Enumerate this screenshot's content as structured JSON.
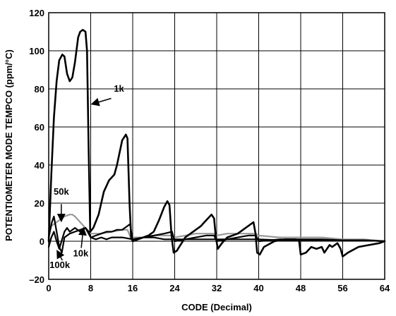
{
  "chart_data": {
    "type": "line",
    "xlabel": "CODE (Decimal)",
    "ylabel": "POTENTIOMETER MODE TEMPCO (ppm/°C)",
    "xlim": [
      0,
      64
    ],
    "ylim": [
      -20,
      120
    ],
    "x_ticks": [
      0,
      8,
      16,
      24,
      32,
      40,
      48,
      56,
      64
    ],
    "y_ticks": [
      -20,
      0,
      20,
      40,
      60,
      80,
      100,
      120
    ],
    "x_tick_labels": [
      "0",
      "8",
      "16",
      "24",
      "32",
      "40",
      "48",
      "56",
      "64"
    ],
    "y_tick_labels": [
      "–20",
      "0",
      "20",
      "40",
      "60",
      "80",
      "100",
      "120"
    ],
    "grid": true,
    "series": [
      {
        "name": "1k",
        "color": "#000000",
        "points": [
          [
            0,
            0
          ],
          [
            0.5,
            35
          ],
          [
            1,
            65
          ],
          [
            1.5,
            84
          ],
          [
            2,
            95
          ],
          [
            2.6,
            98
          ],
          [
            3,
            97
          ],
          [
            3.5,
            88
          ],
          [
            4,
            84
          ],
          [
            4.5,
            86
          ],
          [
            5,
            94
          ],
          [
            5.6,
            107
          ],
          [
            6,
            110
          ],
          [
            6.5,
            111
          ],
          [
            7,
            110
          ],
          [
            7.3,
            100
          ],
          [
            7.6,
            50
          ],
          [
            7.9,
            5
          ],
          [
            8.5,
            7
          ],
          [
            9.5,
            14
          ],
          [
            10.5,
            26
          ],
          [
            11.5,
            32
          ],
          [
            12.5,
            35
          ],
          [
            13,
            40
          ],
          [
            14,
            53
          ],
          [
            14.7,
            56
          ],
          [
            15,
            54
          ],
          [
            15.4,
            20
          ],
          [
            15.7,
            2
          ],
          [
            16,
            0
          ],
          [
            17,
            1
          ],
          [
            18,
            2
          ],
          [
            19,
            3
          ],
          [
            20,
            5
          ],
          [
            21,
            11
          ],
          [
            22,
            18
          ],
          [
            22.6,
            21
          ],
          [
            23,
            19
          ],
          [
            23.4,
            3
          ],
          [
            23.8,
            -6
          ],
          [
            24.4,
            -5
          ],
          [
            26,
            2
          ],
          [
            28,
            6
          ],
          [
            29,
            8
          ],
          [
            30,
            11
          ],
          [
            31,
            14
          ],
          [
            31.5,
            12
          ],
          [
            31.8,
            3
          ],
          [
            32.2,
            -4
          ],
          [
            33,
            -1
          ],
          [
            34,
            2
          ],
          [
            36,
            4
          ],
          [
            37,
            6
          ],
          [
            38,
            8
          ],
          [
            39,
            10
          ],
          [
            39.4,
            4
          ],
          [
            39.7,
            -6
          ],
          [
            40.2,
            -7
          ],
          [
            41,
            -3
          ],
          [
            43,
            0
          ],
          [
            45,
            1
          ],
          [
            46,
            1
          ],
          [
            47,
            1
          ],
          [
            47.7,
            0
          ],
          [
            48,
            -7
          ],
          [
            49,
            -6
          ],
          [
            50,
            -3
          ],
          [
            51,
            -4
          ],
          [
            52,
            -3
          ],
          [
            52.5,
            -6
          ],
          [
            53.5,
            -2
          ],
          [
            54,
            -3
          ],
          [
            55,
            -1
          ],
          [
            55.6,
            -4
          ],
          [
            56,
            -8
          ],
          [
            57,
            -6
          ],
          [
            59,
            -3
          ],
          [
            61,
            -2
          ],
          [
            63,
            -1
          ],
          [
            64,
            0
          ]
        ]
      },
      {
        "name": "50k",
        "color": "#999999",
        "points": [
          [
            0,
            5
          ],
          [
            0.5,
            8
          ],
          [
            1,
            9
          ],
          [
            2,
            11
          ],
          [
            3,
            13
          ],
          [
            4,
            14
          ],
          [
            4.5,
            14
          ],
          [
            5,
            13
          ],
          [
            6,
            10
          ],
          [
            7,
            7
          ],
          [
            8,
            4
          ],
          [
            10,
            4
          ],
          [
            12,
            5
          ],
          [
            14,
            6
          ],
          [
            15,
            6
          ],
          [
            15.6,
            2
          ],
          [
            16,
            2
          ],
          [
            18,
            2
          ],
          [
            20,
            3
          ],
          [
            22,
            3
          ],
          [
            23.5,
            3
          ],
          [
            24,
            2
          ],
          [
            26,
            3
          ],
          [
            28,
            4
          ],
          [
            30,
            4
          ],
          [
            31.5,
            4
          ],
          [
            32,
            3
          ],
          [
            34,
            4
          ],
          [
            36,
            4
          ],
          [
            38,
            4
          ],
          [
            39.5,
            4
          ],
          [
            40,
            3
          ],
          [
            44,
            2
          ],
          [
            48,
            2
          ],
          [
            52,
            2
          ],
          [
            56,
            1
          ],
          [
            60,
            1
          ],
          [
            64,
            0
          ]
        ]
      },
      {
        "name": "10k",
        "color": "#000000",
        "points": [
          [
            0,
            2
          ],
          [
            0.6,
            10
          ],
          [
            1,
            13
          ],
          [
            1.5,
            5
          ],
          [
            2,
            -3
          ],
          [
            2.5,
            -6
          ],
          [
            3,
            2
          ],
          [
            4,
            4
          ],
          [
            5,
            5
          ],
          [
            6,
            6
          ],
          [
            7,
            7
          ],
          [
            7.6,
            5
          ],
          [
            8,
            2
          ],
          [
            9,
            3
          ],
          [
            10,
            4
          ],
          [
            11,
            5
          ],
          [
            12,
            5
          ],
          [
            13,
            6
          ],
          [
            14,
            6
          ],
          [
            15,
            8
          ],
          [
            15.5,
            9
          ],
          [
            16,
            0
          ],
          [
            17,
            1
          ],
          [
            18,
            2
          ],
          [
            20,
            3
          ],
          [
            22,
            4
          ],
          [
            23.5,
            5
          ],
          [
            24,
            0
          ],
          [
            26,
            1
          ],
          [
            28,
            2
          ],
          [
            30,
            3
          ],
          [
            31.5,
            3
          ],
          [
            32,
            0
          ],
          [
            34,
            1
          ],
          [
            36,
            2
          ],
          [
            38,
            3
          ],
          [
            39.5,
            3
          ],
          [
            40,
            0
          ],
          [
            44,
            1
          ],
          [
            48,
            1
          ],
          [
            52,
            1
          ],
          [
            56,
            0.5
          ],
          [
            60,
            0.5
          ],
          [
            64,
            0
          ]
        ]
      },
      {
        "name": "100k",
        "color": "#000000",
        "points": [
          [
            0,
            -3
          ],
          [
            0.5,
            2
          ],
          [
            1,
            5
          ],
          [
            1.5,
            0
          ],
          [
            2,
            -4
          ],
          [
            3,
            5
          ],
          [
            3.5,
            7
          ],
          [
            4,
            5
          ],
          [
            5,
            7
          ],
          [
            6,
            5
          ],
          [
            7,
            7
          ],
          [
            8,
            2
          ],
          [
            9,
            1
          ],
          [
            10,
            2
          ],
          [
            11,
            1
          ],
          [
            12,
            2
          ],
          [
            14,
            2
          ],
          [
            16,
            1
          ],
          [
            18,
            2
          ],
          [
            20,
            2
          ],
          [
            22,
            1
          ],
          [
            24,
            1
          ],
          [
            28,
            1
          ],
          [
            32,
            1
          ],
          [
            36,
            1
          ],
          [
            40,
            1
          ],
          [
            44,
            0.5
          ],
          [
            48,
            0.5
          ],
          [
            52,
            0.5
          ],
          [
            56,
            0.5
          ],
          [
            60,
            0.5
          ],
          [
            64,
            0
          ]
        ]
      }
    ],
    "annotations": [
      {
        "label": "1k",
        "text_at": [
          12.4,
          78.5
        ],
        "arrow_to": [
          8.1,
          73
        ]
      },
      {
        "label": "50k",
        "text_at": [
          2.4,
          24.5
        ]
      },
      {
        "label": "10k",
        "text_at": [
          6.1,
          -8
        ]
      },
      {
        "label": "100k",
        "text_at": [
          2.1,
          -14
        ]
      }
    ]
  }
}
